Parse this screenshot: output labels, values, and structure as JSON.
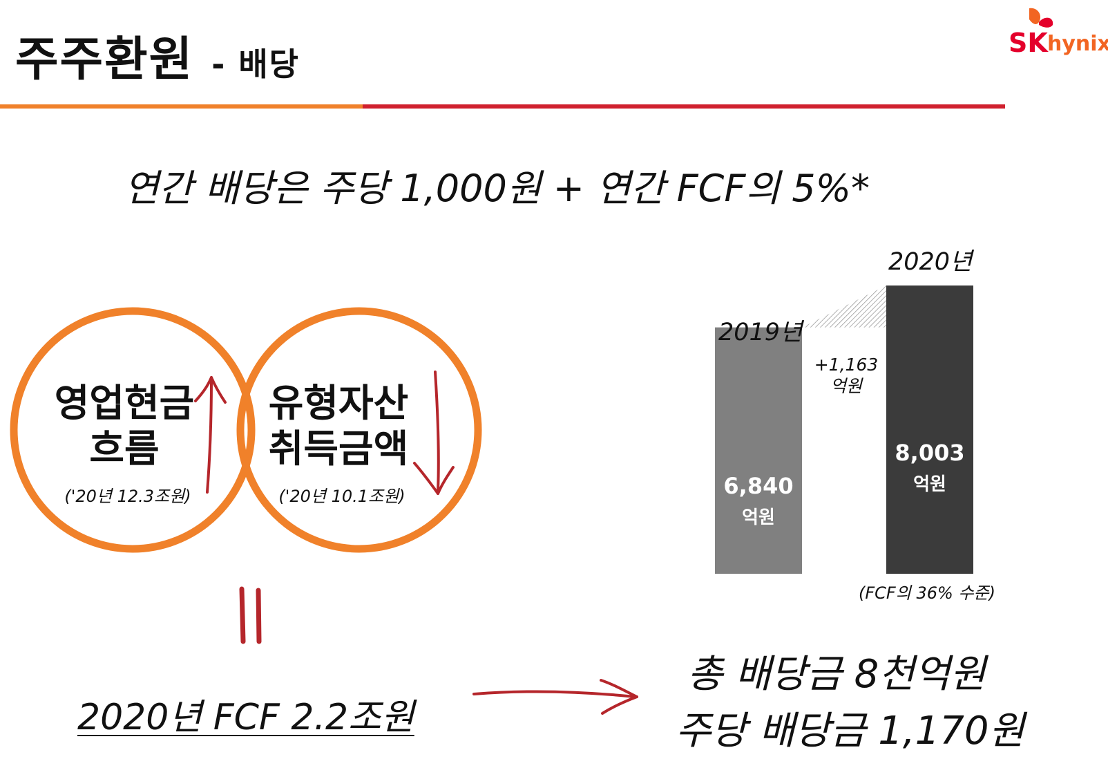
{
  "slide": {
    "title": "주주환원",
    "title_sub": "- 배당",
    "headline": "연간 배당은 주당 1,000원 + 연간 FCF의 5%*"
  },
  "logo": {
    "sk": "SK",
    "hynix": "hynix"
  },
  "circles": {
    "left": {
      "line1": "영업현금",
      "line2": "흐름",
      "note": "('20년 12.3조원)",
      "arrow": "up"
    },
    "right": {
      "line1": "유형자산",
      "line2": "취득금액",
      "note": "('20년 10.1조원)",
      "arrow": "down"
    }
  },
  "fcf": {
    "text": "2020년 FCF 2.2조원"
  },
  "result": {
    "line1": "총 배당금 8천억원",
    "line2": "주당 배당금 1,170원"
  },
  "colors": {
    "orange": "#f0812a",
    "red": "#d0202e",
    "arrow_red": "#b5262b",
    "bar_2019": "#808080",
    "bar_2020": "#3b3b3b"
  },
  "chart_data": {
    "type": "bar",
    "categories": [
      "2019년",
      "2020년"
    ],
    "values": [
      6840,
      8003
    ],
    "value_labels": [
      "6,840",
      "8,003"
    ],
    "unit": "억원",
    "difference": {
      "num": "+1,163",
      "unit": "억원"
    },
    "note": "(FCF의 36% 수준)",
    "ylim": [
      0,
      8003
    ],
    "grid": false
  }
}
